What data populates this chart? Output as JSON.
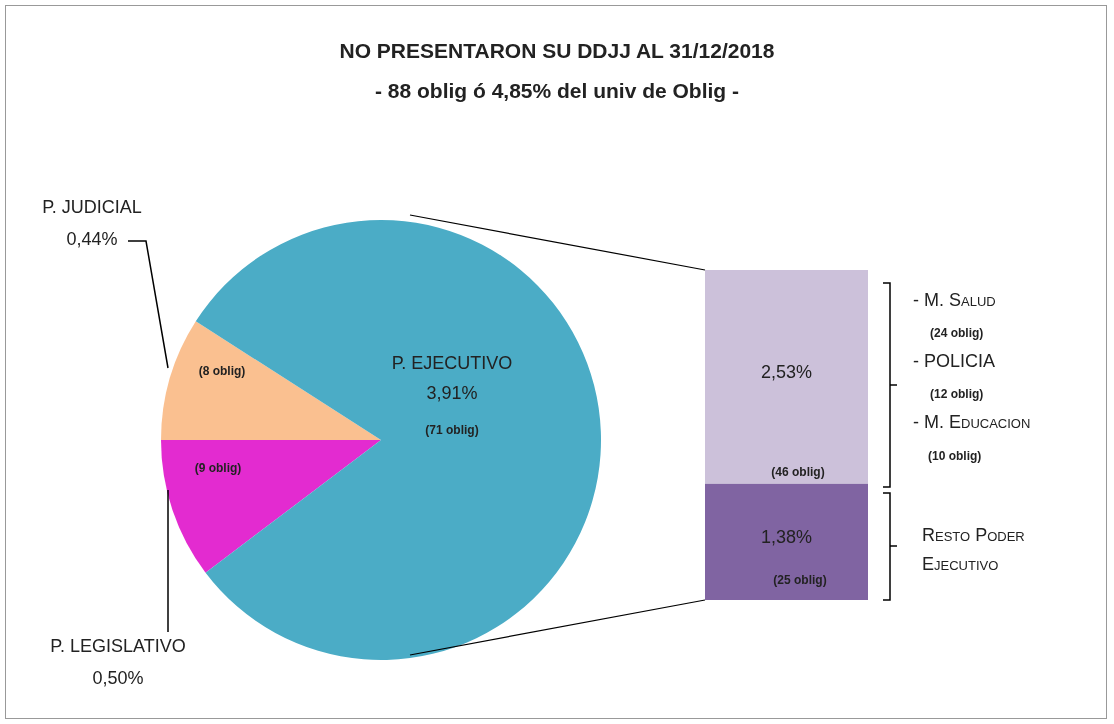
{
  "chart_data": [
    {
      "type": "pie",
      "title": "NO PRESENTARON SU DDJJ AL 31/12/2018",
      "subtitle": "- 88 oblig ó 4,85% del univ de Oblig -",
      "categories": [
        "P. JUDICIAL",
        "P. LEGISLATIVO",
        "P. EJECUTIVO"
      ],
      "values": [
        0.44,
        0.5,
        3.91
      ],
      "colors": [
        "#fac090",
        "#e32bd0",
        "#4bacc6"
      ],
      "value_labels": [
        "0,44%",
        "0,50%",
        "3,91%"
      ],
      "annotations": [
        "(8 oblig)",
        "(9 oblig)",
        "(71 oblig)"
      ]
    },
    {
      "type": "bar",
      "stacked": true,
      "categories": [
        null
      ],
      "series": [
        {
          "name": "Resto Poder Ejecutivo",
          "color": "#8064a2",
          "values": [
            1.38
          ],
          "value_labels": [
            "1,38%"
          ]
        },
        {
          "color": "#ccc1da",
          "values": [
            2.53
          ],
          "value_labels": [
            "2,53%"
          ]
        }
      ],
      "annotations": [
        "(25 oblig)",
        "(46 oblig)",
        "- M. Salud",
        "(24 oblig)",
        "- POLICIA",
        "(12 oblig)",
        "- M. Educacion",
        "(10 oblig)"
      ]
    }
  ]
}
